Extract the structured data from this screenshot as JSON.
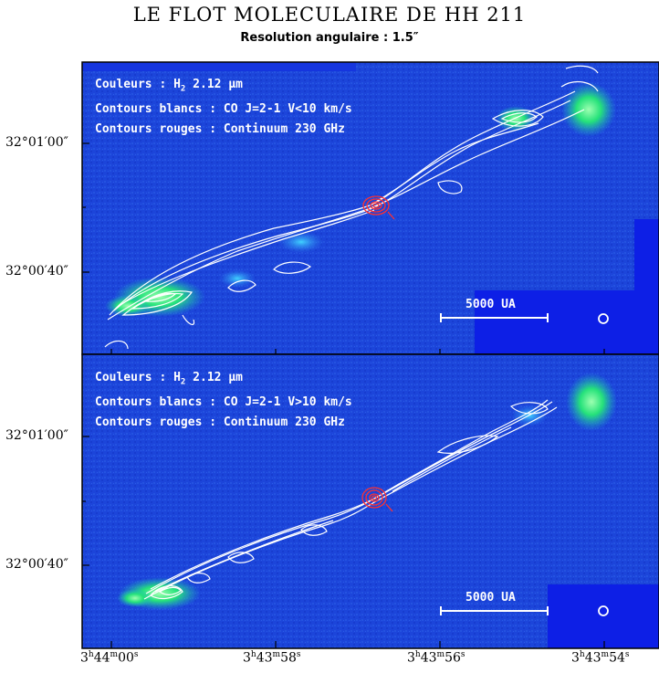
{
  "figure": {
    "title": "LE FLOT MOLECULAIRE DE HH 211",
    "subtitle": "Resolution angulaire : 1.5″"
  },
  "panels": [
    {
      "legend": {
        "line1_prefix": "Couleurs : H",
        "line1_sub": "2",
        "line1_suffix": " 2.12 μm",
        "line2": "Contours blancs : CO J=2-1 V<10 km/s",
        "line3": "Contours rouges : Continuum 230 GHz"
      },
      "scale_bar": "5000 UA",
      "y_ticks": [
        "32°01′00″",
        "32°00′40″"
      ]
    },
    {
      "legend": {
        "line1_prefix": "Couleurs : H",
        "line1_sub": "2",
        "line1_suffix": " 2.12 μm",
        "line2": "Contours blancs : CO J=2-1 V>10 km/s",
        "line3": "Contours rouges : Continuum 230 GHz"
      },
      "scale_bar": "5000 UA",
      "y_ticks": [
        "32°01′00″",
        "32°00′40″"
      ]
    }
  ],
  "x_ticks": [
    {
      "h": "3",
      "hs": "h",
      "m": "44",
      "ms": "m",
      "s": "00",
      "ss": "s"
    },
    {
      "h": "3",
      "hs": "h",
      "m": "43",
      "ms": "m",
      "s": "58",
      "ss": "s"
    },
    {
      "h": "3",
      "hs": "h",
      "m": "43",
      "ms": "m",
      "s": "56",
      "ss": "s"
    },
    {
      "h": "3",
      "hs": "h",
      "m": "43",
      "ms": "m",
      "s": "54",
      "ss": "s"
    }
  ],
  "colors": {
    "background_blue": "#1a3fd6",
    "h2_green": "#22e07a",
    "co_contour": "#ffffff",
    "continuum_contour": "#ff3030"
  }
}
